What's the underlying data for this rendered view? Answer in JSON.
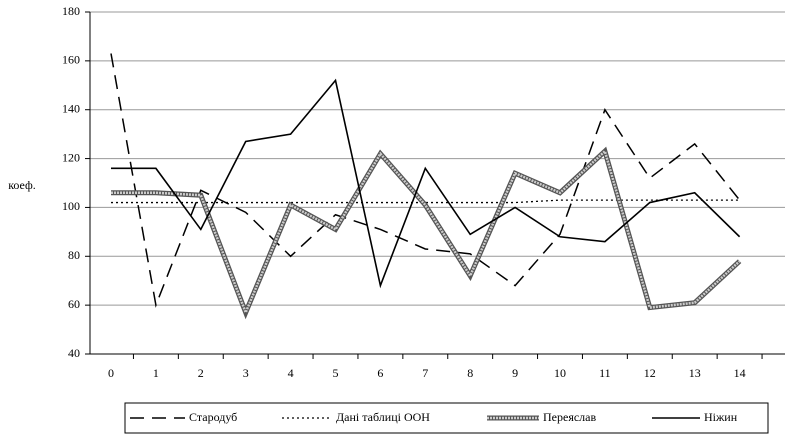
{
  "chart_data": {
    "type": "line",
    "y_label": "коеф.",
    "categories": [
      "0",
      "1",
      "2",
      "3",
      "4",
      "5",
      "6",
      "7",
      "8",
      "9",
      "10",
      "11",
      "12",
      "13",
      "14"
    ],
    "series": [
      {
        "name": "Стародуб",
        "color": "#000000",
        "style": "dashed",
        "values": [
          163,
          60,
          107,
          98,
          80,
          97,
          91,
          83,
          81,
          68,
          89,
          140,
          112,
          126,
          103
        ]
      },
      {
        "name": "Дані таблиці ООН",
        "color": "#000000",
        "style": "dotted",
        "values": [
          102,
          102,
          102,
          102,
          102,
          102,
          102,
          102,
          102,
          102,
          103,
          103,
          103,
          103,
          103
        ]
      },
      {
        "name": "Переяслав",
        "color": "#888888",
        "style": "double",
        "values": [
          106,
          106,
          105,
          57,
          101,
          91,
          122,
          101,
          72,
          114,
          106,
          123,
          59,
          61,
          78
        ]
      },
      {
        "name": "Ніжин",
        "color": "#000000",
        "style": "solid",
        "values": [
          116,
          116,
          91,
          127,
          130,
          152,
          68,
          116,
          89,
          100,
          88,
          86,
          102,
          106,
          88
        ]
      }
    ],
    "ylim": [
      40,
      180
    ],
    "yticks": [
      40,
      60,
      80,
      100,
      120,
      140,
      160,
      180
    ],
    "grid": true,
    "legend": "bottom"
  }
}
